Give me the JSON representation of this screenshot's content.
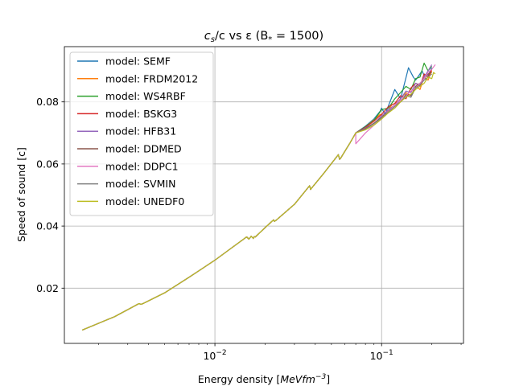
{
  "chart_data": {
    "type": "line",
    "title_parts": {
      "a": "c",
      "a_sub": "s",
      "b": "/c vs ε (B",
      "b_sub": "*",
      "c": " = 1500)"
    },
    "title": "c_s/c vs ε (B_* = 1500)",
    "xlabel_parts": {
      "a": "Energy density [",
      "b": "MeVfm",
      "sup": "−3",
      "c": "]"
    },
    "xlabel": "Energy density [MeVfm^−3]",
    "ylabel": "Speed of sound [c]",
    "x_scale": "log",
    "xlim": [
      0.00125,
      0.31
    ],
    "ylim": [
      0.0022,
      0.0978
    ],
    "x_major_ticks": [
      {
        "value": 0.01,
        "base": "10",
        "exp": "−2"
      },
      {
        "value": 0.1,
        "base": "10",
        "exp": "−1"
      }
    ],
    "y_ticks": [
      {
        "value": 0.02,
        "label": "0.02"
      },
      {
        "value": 0.04,
        "label": "0.04"
      },
      {
        "value": 0.06,
        "label": "0.06"
      },
      {
        "value": 0.08,
        "label": "0.08"
      }
    ],
    "grid": true,
    "legend_position": "upper-left",
    "base_curve": {
      "x": [
        0.0016,
        0.0025,
        0.0035,
        0.0036,
        0.0037,
        0.005,
        0.007,
        0.01,
        0.013,
        0.0155,
        0.016,
        0.0165,
        0.017,
        0.0172,
        0.0175,
        0.02,
        0.0225,
        0.0228,
        0.0232,
        0.03,
        0.037,
        0.0375,
        0.038,
        0.045,
        0.055,
        0.056,
        0.057,
        0.065,
        0.07
      ],
      "y": [
        0.0065,
        0.0108,
        0.015,
        0.0148,
        0.015,
        0.0185,
        0.0235,
        0.029,
        0.0335,
        0.0365,
        0.0358,
        0.0367,
        0.036,
        0.0366,
        0.0365,
        0.0395,
        0.042,
        0.0415,
        0.0418,
        0.047,
        0.053,
        0.0518,
        0.0522,
        0.057,
        0.063,
        0.0615,
        0.062,
        0.067,
        0.07
      ]
    },
    "series": [
      {
        "name": "model: SEMF",
        "color": "#1f77b4",
        "x": [
          0.07,
          0.08,
          0.09,
          0.098,
          0.1,
          0.105,
          0.12,
          0.13,
          0.145,
          0.155,
          0.16,
          0.175,
          0.185,
          0.2
        ],
        "y": [
          0.07,
          0.0722,
          0.0745,
          0.077,
          0.078,
          0.076,
          0.084,
          0.081,
          0.091,
          0.088,
          0.087,
          0.09,
          0.087,
          0.091
        ]
      },
      {
        "name": "model: FRDM2012",
        "color": "#ff7f0e",
        "x": [
          0.07,
          0.08,
          0.09,
          0.098,
          0.105,
          0.115,
          0.125,
          0.14,
          0.15,
          0.16,
          0.17,
          0.18,
          0.19,
          0.2
        ],
        "y": [
          0.07,
          0.072,
          0.0742,
          0.076,
          0.0755,
          0.079,
          0.08,
          0.083,
          0.082,
          0.085,
          0.084,
          0.088,
          0.087,
          0.09
        ]
      },
      {
        "name": "model: WS4RBF",
        "color": "#2ca02c",
        "x": [
          0.07,
          0.08,
          0.09,
          0.1,
          0.11,
          0.12,
          0.13,
          0.14,
          0.15,
          0.16,
          0.17,
          0.18,
          0.19,
          0.2
        ],
        "y": [
          0.07,
          0.072,
          0.074,
          0.0775,
          0.078,
          0.081,
          0.083,
          0.085,
          0.084,
          0.0875,
          0.088,
          0.0925,
          0.09,
          0.0915
        ]
      },
      {
        "name": "model: BSKG3",
        "color": "#d62728",
        "x": [
          0.07,
          0.08,
          0.09,
          0.1,
          0.11,
          0.12,
          0.13,
          0.14,
          0.15,
          0.16,
          0.17,
          0.18,
          0.19,
          0.2
        ],
        "y": [
          0.07,
          0.0718,
          0.0738,
          0.076,
          0.0785,
          0.0795,
          0.082,
          0.081,
          0.0845,
          0.086,
          0.085,
          0.089,
          0.088,
          0.0905
        ]
      },
      {
        "name": "model: HFB31",
        "color": "#9467bd",
        "x": [
          0.07,
          0.08,
          0.09,
          0.1,
          0.11,
          0.12,
          0.13,
          0.14,
          0.15,
          0.16,
          0.17,
          0.18,
          0.19,
          0.2
        ],
        "y": [
          0.07,
          0.0716,
          0.073,
          0.0755,
          0.0775,
          0.079,
          0.081,
          0.0835,
          0.083,
          0.086,
          0.0855,
          0.088,
          0.09,
          0.092
        ]
      },
      {
        "name": "model: DDMED",
        "color": "#8c564b",
        "x": [
          0.07,
          0.08,
          0.09,
          0.1,
          0.11,
          0.12,
          0.13,
          0.14,
          0.15,
          0.16,
          0.17,
          0.18,
          0.19,
          0.2
        ],
        "y": [
          0.07,
          0.0714,
          0.0732,
          0.075,
          0.077,
          0.079,
          0.08,
          0.0825,
          0.082,
          0.085,
          0.086,
          0.0875,
          0.089,
          0.0895
        ]
      },
      {
        "name": "model: DDPC1",
        "color": "#e377c2",
        "x": [
          0.063,
          0.07,
          0.08,
          0.09,
          0.1,
          0.11,
          0.12,
          0.13,
          0.14,
          0.15,
          0.16,
          0.17,
          0.18,
          0.19,
          0.2,
          0.21
        ],
        "y": [
          0.064,
          0.0665,
          0.07,
          0.0725,
          0.0745,
          0.077,
          0.079,
          0.0805,
          0.082,
          0.0835,
          0.0845,
          0.086,
          0.0875,
          0.0895,
          0.0905,
          0.092
        ]
      },
      {
        "name": "model: SVMIN",
        "color": "#7f7f7f",
        "x": [
          0.07,
          0.08,
          0.09,
          0.1,
          0.11,
          0.12,
          0.13,
          0.14,
          0.15,
          0.16,
          0.17,
          0.18,
          0.19,
          0.2
        ],
        "y": [
          0.07,
          0.0712,
          0.073,
          0.0748,
          0.0768,
          0.0785,
          0.08,
          0.082,
          0.0815,
          0.0845,
          0.0855,
          0.087,
          0.088,
          0.089
        ]
      },
      {
        "name": "model: UNEDF0",
        "color": "#bcbd22",
        "x": [
          0.07,
          0.08,
          0.09,
          0.1,
          0.11,
          0.12,
          0.13,
          0.14,
          0.15,
          0.16,
          0.17,
          0.18,
          0.19,
          0.2,
          0.205,
          0.21
        ],
        "y": [
          0.07,
          0.071,
          0.0725,
          0.0745,
          0.0765,
          0.078,
          0.08,
          0.0815,
          0.0825,
          0.084,
          0.085,
          0.086,
          0.088,
          0.0875,
          0.0895,
          0.089
        ]
      }
    ]
  }
}
